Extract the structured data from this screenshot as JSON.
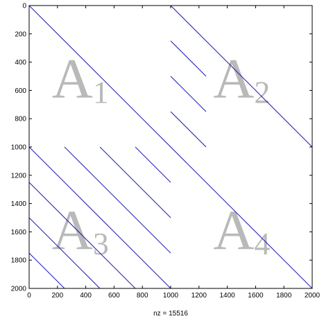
{
  "chart_data": {
    "type": "spy",
    "title": "",
    "xlabel": "nz = 15516",
    "ylabel": "",
    "xlim": [
      0,
      2000
    ],
    "ylim": [
      0,
      2000
    ],
    "y_reversed": true,
    "grid": false,
    "legend": "none",
    "x_ticks": [
      0,
      200,
      400,
      600,
      800,
      1000,
      1200,
      1400,
      1600,
      1800,
      2000
    ],
    "y_ticks": [
      0,
      200,
      400,
      600,
      800,
      1000,
      1200,
      1400,
      1600,
      1800,
      2000
    ],
    "dot_color": "#1a1ab4",
    "label_color": "#b9b9b9",
    "diagonal_segments": [
      {
        "x0": 0,
        "y0": 0,
        "x1": 2000,
        "y1": 2000
      },
      {
        "x0": 1000,
        "y0": 0,
        "x1": 2000,
        "y1": 1000
      },
      {
        "x0": 1000,
        "y0": 250,
        "x1": 1250,
        "y1": 500
      },
      {
        "x0": 1000,
        "y0": 500,
        "x1": 1250,
        "y1": 750
      },
      {
        "x0": 1000,
        "y0": 750,
        "x1": 1250,
        "y1": 1000
      },
      {
        "x0": 250,
        "y0": 1000,
        "x1": 1000,
        "y1": 1750
      },
      {
        "x0": 500,
        "y0": 1000,
        "x1": 1000,
        "y1": 1500
      },
      {
        "x0": 750,
        "y0": 1000,
        "x1": 1000,
        "y1": 1250
      },
      {
        "x0": 0,
        "y0": 1000,
        "x1": 1000,
        "y1": 2000
      },
      {
        "x0": 0,
        "y0": 1250,
        "x1": 750,
        "y1": 2000
      },
      {
        "x0": 0,
        "y0": 1500,
        "x1": 500,
        "y1": 2000
      },
      {
        "x0": 0,
        "y0": 1750,
        "x1": 250,
        "y1": 2000
      }
    ],
    "block_labels": [
      {
        "letter": "A",
        "sub": "1",
        "x": 160,
        "y": 650
      },
      {
        "letter": "A",
        "sub": "2",
        "x": 1300,
        "y": 650
      },
      {
        "letter": "A",
        "sub": "3",
        "x": 160,
        "y": 1720
      },
      {
        "letter": "A",
        "sub": "4",
        "x": 1300,
        "y": 1720
      }
    ]
  }
}
